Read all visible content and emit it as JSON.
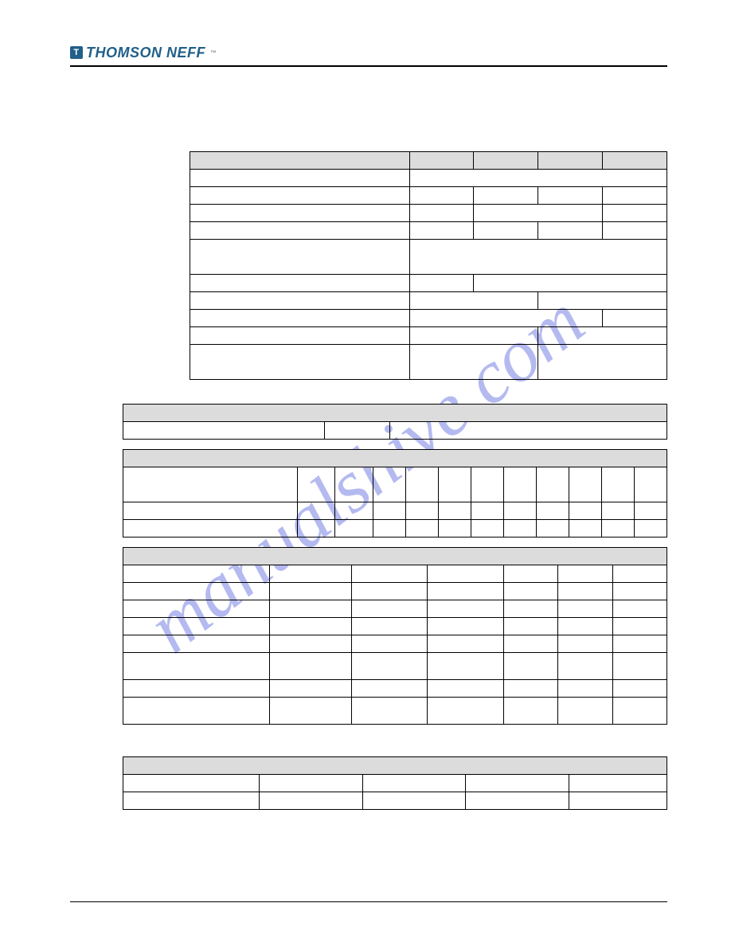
{
  "brand": {
    "icon_letter": "T",
    "name": "THOMSON NEFF",
    "tm": "™"
  },
  "watermark_text": "manualshive.com",
  "colors": {
    "watermark": "rgba(88,103,221,0.45)",
    "header_bg": "#dcdcdc",
    "border": "#000000",
    "brand": "#21608a"
  },
  "tables": {
    "t1": {
      "cols": [
        "46%",
        "13.5%",
        "13.5%",
        "13.5%",
        "13.5%"
      ],
      "rows": [
        {
          "spans": [
            1,
            1,
            1,
            1,
            1
          ],
          "hdr": true
        },
        {
          "spans": [
            1,
            4
          ]
        },
        {
          "spans": [
            1,
            1,
            1,
            1,
            1
          ]
        },
        {
          "spans": [
            1,
            1,
            2,
            1
          ]
        },
        {
          "spans": [
            1,
            1,
            1,
            1,
            1
          ]
        },
        {
          "spans": [
            1,
            4
          ],
          "h": 44
        },
        {
          "spans": [
            1,
            1,
            3
          ]
        },
        {
          "spans": [
            1,
            2,
            2
          ]
        },
        {
          "spans": [
            1,
            3,
            1
          ]
        },
        {
          "spans": [
            1,
            2,
            2
          ]
        },
        {
          "spans": [
            1,
            2,
            2
          ],
          "h": 44
        }
      ]
    },
    "t2": {
      "cols": [
        "37%",
        "12%",
        "51%"
      ],
      "header_span": 3,
      "body_rows": [
        [
          1,
          1,
          1
        ]
      ]
    },
    "t3": {
      "cols": [
        "32%",
        "7%",
        "7%",
        "6%",
        "6%",
        "6%",
        "6%",
        "6%",
        "6%",
        "6%",
        "6%",
        "6%"
      ],
      "header_span": 12,
      "body_rows": [
        {
          "spans": [
            1,
            1,
            1,
            1,
            1,
            1,
            1,
            1,
            1,
            1,
            1,
            1
          ],
          "h": 44
        },
        {
          "spans": [
            1,
            1,
            1,
            1,
            1,
            1,
            1,
            1,
            1,
            1,
            1,
            1
          ]
        },
        {
          "spans": [
            1,
            1,
            1,
            1,
            1,
            1,
            1,
            1,
            1,
            1,
            1,
            1
          ]
        }
      ]
    },
    "t4": {
      "cols": [
        "27%",
        "15%",
        "14%",
        "14%",
        "10%",
        "10%",
        "10%"
      ],
      "header_span": 7,
      "body_rows": [
        {
          "spans": [
            1,
            1,
            1,
            1,
            1,
            1,
            1
          ]
        },
        {
          "spans": [
            1,
            1,
            1,
            1,
            1,
            1,
            1
          ]
        },
        {
          "spans": [
            1,
            1,
            1,
            1,
            1,
            1,
            1
          ]
        },
        {
          "spans": [
            1,
            1,
            1,
            1,
            1,
            1,
            1
          ]
        },
        {
          "spans": [
            1,
            1,
            1,
            1,
            1,
            1,
            1
          ]
        },
        {
          "spans": [
            1,
            1,
            1,
            1,
            1,
            1,
            1
          ],
          "h": 34
        },
        {
          "spans": [
            1,
            1,
            1,
            1,
            1,
            1,
            1
          ]
        },
        {
          "spans": [
            1,
            1,
            1,
            1,
            1,
            1,
            1
          ],
          "h": 34
        }
      ]
    },
    "t5": {
      "cols": [
        "25%",
        "19%",
        "19%",
        "19%",
        "18%"
      ],
      "header_span": 5,
      "body_rows": [
        {
          "spans": [
            1,
            1,
            1,
            1,
            1
          ]
        },
        {
          "spans": [
            1,
            1,
            1,
            1,
            1
          ]
        }
      ]
    }
  }
}
